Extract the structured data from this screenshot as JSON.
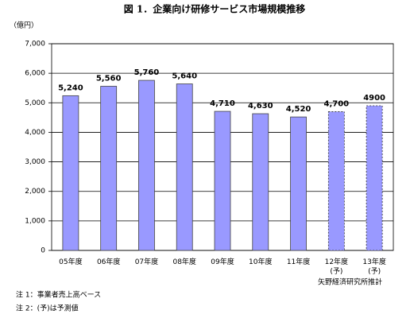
{
  "chart_data": {
    "type": "bar",
    "title": "図 1．企業向け研修サービス市場規模推移",
    "y_unit": "（億円）",
    "categories": [
      "05年度",
      "06年度",
      "07年度",
      "08年度",
      "09年度",
      "10年度",
      "11年度",
      "12年度\n(予)",
      "13年度\n(予)"
    ],
    "values": [
      5240,
      5560,
      5760,
      5640,
      4710,
      4630,
      4520,
      4700,
      4900
    ],
    "value_labels": [
      "5,240",
      "5,560",
      "5,760",
      "5,640",
      "4,710",
      "4,630",
      "4,520",
      "4,700",
      "4900"
    ],
    "bar_styles": [
      "solid",
      "solid",
      "solid",
      "solid",
      "solid",
      "solid",
      "solid",
      "dashed",
      "dashed"
    ],
    "color": "#9999ff",
    "ylim": [
      0,
      7000
    ],
    "yticks": [
      0,
      {
        "value": 1000,
        "label": "1,000"
      },
      {
        "value": 2000,
        "label": "2,000"
      },
      {
        "value": 3000,
        "label": "3,000"
      },
      {
        "value": 4000,
        "label": "4,000"
      },
      {
        "value": 5000,
        "label": "5,000"
      },
      {
        "value": 6000,
        "label": "6,000"
      },
      {
        "value": 7000,
        "label": "7,000"
      }
    ],
    "grid": true,
    "notes": [
      "注 1：事業者売上高ベース",
      "注 2：(予)は予測値"
    ],
    "source": "矢野経済研究所推計"
  }
}
